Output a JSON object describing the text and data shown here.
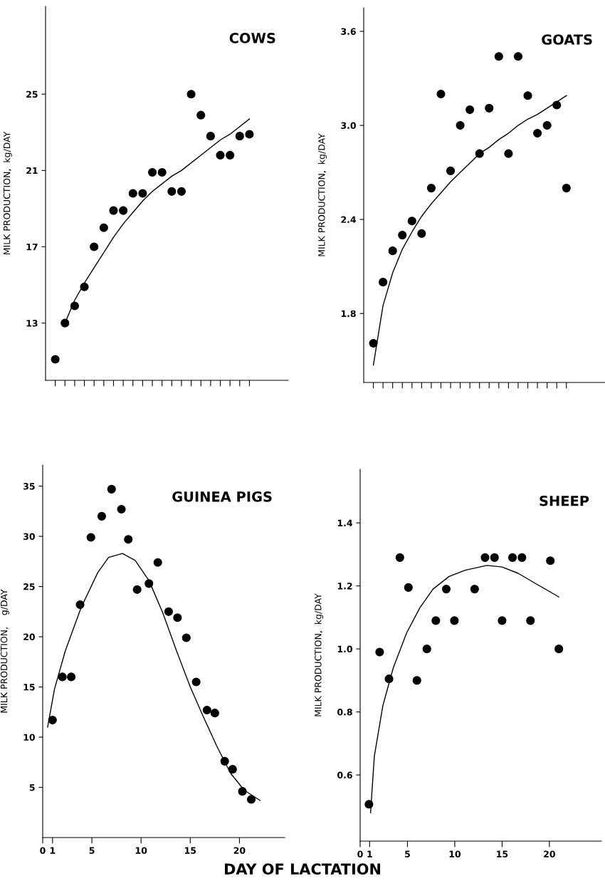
{
  "chart_data": [
    {
      "type": "scatter",
      "title": "COWS",
      "ylabel": "MILK PRODUCTION,  kg/DAY",
      "tick_labels": "y",
      "categories": [
        null,
        null,
        null,
        null,
        null,
        null,
        null,
        null,
        null,
        null,
        null,
        null,
        null,
        null,
        null,
        null,
        null,
        null,
        null,
        null,
        null
      ],
      "ylim": [
        10,
        29.6
      ],
      "yticks": [
        13,
        17,
        21,
        25
      ],
      "series": [
        {
          "color": "#000000",
          "marker": "circle",
          "values": [
            11.1,
            13.0,
            13.9,
            14.9,
            17.0,
            18.0,
            18.9,
            18.9,
            19.8,
            19.8,
            20.9,
            20.9,
            19.9,
            19.9,
            25.0,
            23.9,
            22.8,
            21.8,
            21.8,
            22.8,
            22.9
          ]
        },
        {
          "type": "line",
          "color": "#000000",
          "values": [
            null,
            13.0,
            14.2,
            15.1,
            15.9,
            16.7,
            17.5,
            18.2,
            18.8,
            19.4,
            19.9,
            20.3,
            20.7,
            21.0,
            21.4,
            21.8,
            22.2,
            22.6,
            22.9,
            23.3,
            23.7
          ]
        }
      ]
    },
    {
      "type": "scatter",
      "title": "GOATS",
      "ylabel": "MILK PRODUCTION,  kg/DAY",
      "tick_labels": "y",
      "categories": [
        null,
        null,
        null,
        null,
        null,
        null,
        null,
        null,
        null,
        null,
        null,
        null,
        null,
        null,
        null,
        null,
        null,
        null,
        null,
        null,
        null
      ],
      "ylim": [
        1.36,
        3.75
      ],
      "yticks": [
        {
          "value": 1.8,
          "label": "1.8"
        },
        {
          "value": 2.4,
          "label": "2.4"
        },
        {
          "value": 3.0,
          "label": "3.0"
        },
        {
          "value": 3.6,
          "label": "3.6"
        }
      ],
      "series": [
        {
          "color": "#000000",
          "marker": "circle",
          "values": [
            1.61,
            2.0,
            2.2,
            2.3,
            2.39,
            2.31,
            2.6,
            3.2,
            2.71,
            3.0,
            3.1,
            2.82,
            3.11,
            3.44,
            2.82,
            3.44,
            3.19,
            2.95,
            3.0,
            3.13,
            2.6
          ]
        },
        {
          "type": "line",
          "color": "#000000",
          "values": [
            1.47,
            1.85,
            2.06,
            2.21,
            2.32,
            2.42,
            2.5,
            2.57,
            2.64,
            2.7,
            2.76,
            2.82,
            2.86,
            2.91,
            2.95,
            3.0,
            3.04,
            3.07,
            3.11,
            3.15,
            3.19
          ]
        }
      ]
    },
    {
      "type": "scatter",
      "title": "GUINEA PIGS",
      "ylabel": "MILK PRODUCTION,    g/DAY",
      "xlim": [
        0,
        24.6
      ],
      "xticks": [
        {
          "value": 0,
          "label": "0"
        },
        1,
        5,
        10,
        15,
        20
      ],
      "ylim": [
        0,
        37.1
      ],
      "yticks": [
        5,
        10,
        15,
        20,
        25,
        30,
        35
      ],
      "series": [
        {
          "color": "#000000",
          "marker": "circle",
          "x": [
            1.0,
            2.0,
            2.9,
            3.8,
            4.9,
            6.0,
            7.0,
            8.0,
            8.7,
            9.6,
            10.8,
            11.7,
            12.8,
            13.7,
            14.6,
            15.6,
            16.7,
            17.5,
            18.5,
            19.3,
            20.3,
            21.2
          ],
          "values": [
            11.7,
            16.0,
            16.0,
            23.2,
            29.9,
            32.0,
            34.7,
            32.7,
            29.7,
            24.7,
            25.3,
            27.4,
            22.5,
            21.9,
            19.9,
            15.5,
            12.7,
            12.4,
            7.6,
            6.8,
            4.6,
            3.8
          ]
        },
        {
          "type": "line",
          "color": "#000000",
          "x": [
            0.5,
            1.2,
            2.3,
            3.9,
            5.6,
            6.7,
            8.1,
            9.4,
            10.8,
            12.2,
            13.6,
            15.0,
            16.3,
            17.7,
            19.1,
            20.5,
            22.1
          ],
          "values": [
            11.0,
            14.8,
            18.6,
            22.9,
            26.4,
            27.9,
            28.3,
            27.6,
            25.6,
            22.4,
            18.6,
            15.0,
            12.1,
            9.1,
            6.4,
            4.7,
            3.7
          ]
        }
      ]
    },
    {
      "type": "scatter",
      "title": "SHEEP",
      "ylabel": "MILK PRODUCTION,  kg/DAY",
      "annotations": [
        "DAY OF LACTATION"
      ],
      "xlim": [
        0,
        25.5
      ],
      "xticks": [
        {
          "value": 0,
          "label": "0"
        },
        1,
        5,
        10,
        15,
        20
      ],
      "ylim": [
        0.39,
        1.57
      ],
      "yticks": [
        0.6,
        0.8,
        {
          "value": 1.0,
          "label": "1.0"
        },
        1.2,
        1.4
      ],
      "series": [
        {
          "color": "#000000",
          "marker": "circle",
          "x": [
            0.93,
            2.06,
            3.05,
            4.2,
            5.1,
            6.0,
            7.05,
            8.0,
            9.1,
            9.96,
            12.1,
            13.2,
            14.2,
            15.0,
            16.1,
            17.1,
            18.0,
            20.1,
            21.0
          ],
          "values": [
            0.507,
            0.99,
            0.905,
            1.29,
            1.195,
            0.9,
            1.0,
            1.09,
            1.19,
            1.09,
            1.19,
            1.29,
            1.29,
            1.09,
            1.29,
            1.29,
            1.09,
            1.28,
            1.0
          ]
        },
        {
          "type": "line",
          "color": "#000000",
          "x": [
            1.1,
            1.5,
            2.4,
            3.5,
            4.9,
            6.3,
            7.7,
            9.4,
            11.1,
            13.4,
            15.0,
            16.7,
            18.4,
            21.0
          ],
          "values": [
            0.48,
            0.66,
            0.82,
            0.94,
            1.05,
            1.13,
            1.19,
            1.23,
            1.25,
            1.265,
            1.26,
            1.24,
            1.21,
            1.165
          ]
        }
      ]
    }
  ]
}
